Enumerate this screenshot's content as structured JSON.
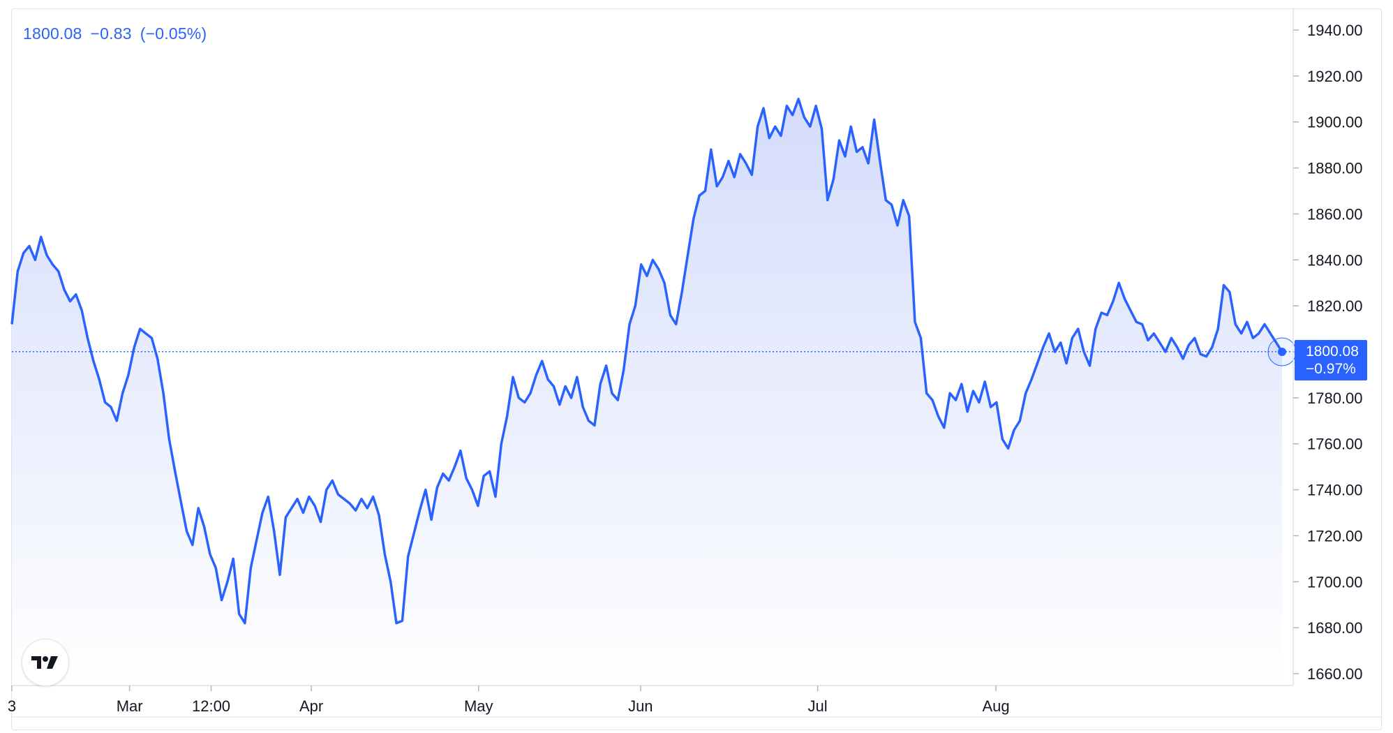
{
  "legend": {
    "last": "1800.08",
    "change": "−0.83",
    "change_pct": "(−0.05%)"
  },
  "badge": {
    "price": "1800.08",
    "change_pct": "−0.97%"
  },
  "colors": {
    "line": "#2962ff",
    "area_top": "#d4dcfb",
    "area_bottom": "#ffffff",
    "axis_text": "#131722",
    "border": "#e0e3eb"
  },
  "logo_icon": "tradingview-logo-icon",
  "chart_data": {
    "type": "area",
    "y_ticks": [
      "1940.00",
      "1920.00",
      "1900.00",
      "1880.00",
      "1860.00",
      "1840.00",
      "1820.00",
      "1800.00",
      "1780.00",
      "1760.00",
      "1740.00",
      "1720.00",
      "1700.00",
      "1680.00",
      "1660.00"
    ],
    "ylim": [
      1655,
      1950
    ],
    "x_tick_labels": [
      {
        "label": "3",
        "t": 0
      },
      {
        "label": "Mar",
        "t": 20.2
      },
      {
        "label": "12:00",
        "t": 34.2
      },
      {
        "label": "Apr",
        "t": 51.4
      },
      {
        "label": "May",
        "t": 80.1
      },
      {
        "label": "Jun",
        "t": 107.9
      },
      {
        "label": "Jul",
        "t": 138.3
      },
      {
        "label": "Aug",
        "t": 168.9
      }
    ],
    "last_value": 1800.08,
    "series": [
      {
        "points": [
          [
            0,
            1812
          ],
          [
            1,
            1835
          ],
          [
            2,
            1843
          ],
          [
            3,
            1846
          ],
          [
            4,
            1840
          ],
          [
            5,
            1850
          ],
          [
            6,
            1842
          ],
          [
            7,
            1838
          ],
          [
            8,
            1835
          ],
          [
            9,
            1827
          ],
          [
            10,
            1822
          ],
          [
            11,
            1825
          ],
          [
            12,
            1818
          ],
          [
            13,
            1806
          ],
          [
            14,
            1796
          ],
          [
            15,
            1788
          ],
          [
            16,
            1778
          ],
          [
            17,
            1776
          ],
          [
            18,
            1770
          ],
          [
            19,
            1782
          ],
          [
            20,
            1790
          ],
          [
            21,
            1802
          ],
          [
            22,
            1810
          ],
          [
            23,
            1808
          ],
          [
            24,
            1806
          ],
          [
            25,
            1797
          ],
          [
            26,
            1782
          ],
          [
            27,
            1762
          ],
          [
            28,
            1748
          ],
          [
            29,
            1735
          ],
          [
            30,
            1722
          ],
          [
            31,
            1716
          ],
          [
            32,
            1732
          ],
          [
            33,
            1724
          ],
          [
            34,
            1712
          ],
          [
            35,
            1706
          ],
          [
            36,
            1692
          ],
          [
            37,
            1700
          ],
          [
            38,
            1710
          ],
          [
            39,
            1686
          ],
          [
            40,
            1682
          ],
          [
            41,
            1706
          ],
          [
            42,
            1718
          ],
          [
            43,
            1730
          ],
          [
            44,
            1737
          ],
          [
            45,
            1722
          ],
          [
            46,
            1703
          ],
          [
            47,
            1728
          ],
          [
            48,
            1732
          ],
          [
            49,
            1736
          ],
          [
            50,
            1730
          ],
          [
            51,
            1737
          ],
          [
            52,
            1733
          ],
          [
            53,
            1726
          ],
          [
            54,
            1740
          ],
          [
            55,
            1744
          ],
          [
            56,
            1738
          ],
          [
            57,
            1736
          ],
          [
            58,
            1734
          ],
          [
            59,
            1731
          ],
          [
            60,
            1736
          ],
          [
            61,
            1732
          ],
          [
            62,
            1737
          ],
          [
            63,
            1729
          ],
          [
            64,
            1712
          ],
          [
            65,
            1700
          ],
          [
            66,
            1682
          ],
          [
            67,
            1683
          ],
          [
            68,
            1711
          ],
          [
            69,
            1721
          ],
          [
            70,
            1731
          ],
          [
            71,
            1740
          ],
          [
            72,
            1727
          ],
          [
            73,
            1741
          ],
          [
            74,
            1747
          ],
          [
            75,
            1744
          ],
          [
            76,
            1750
          ],
          [
            77,
            1757
          ],
          [
            78,
            1745
          ],
          [
            79,
            1740
          ],
          [
            80,
            1733
          ],
          [
            81,
            1746
          ],
          [
            82,
            1748
          ],
          [
            83,
            1737
          ],
          [
            84,
            1760
          ],
          [
            85,
            1772
          ],
          [
            86,
            1789
          ],
          [
            87,
            1780
          ],
          [
            88,
            1778
          ],
          [
            89,
            1782
          ],
          [
            90,
            1790
          ],
          [
            91,
            1796
          ],
          [
            92,
            1788
          ],
          [
            93,
            1785
          ],
          [
            94,
            1777
          ],
          [
            95,
            1785
          ],
          [
            96,
            1780
          ],
          [
            97,
            1789
          ],
          [
            98,
            1776
          ],
          [
            99,
            1770
          ],
          [
            100,
            1768
          ],
          [
            101,
            1786
          ],
          [
            102,
            1794
          ],
          [
            103,
            1782
          ],
          [
            104,
            1779
          ],
          [
            105,
            1792
          ],
          [
            106,
            1812
          ],
          [
            107,
            1820
          ],
          [
            108,
            1838
          ],
          [
            109,
            1833
          ],
          [
            110,
            1840
          ],
          [
            111,
            1836
          ],
          [
            112,
            1830
          ],
          [
            113,
            1816
          ],
          [
            114,
            1812
          ],
          [
            115,
            1826
          ],
          [
            116,
            1842
          ],
          [
            117,
            1858
          ],
          [
            118,
            1868
          ],
          [
            119,
            1870
          ],
          [
            120,
            1888
          ],
          [
            121,
            1872
          ],
          [
            122,
            1876
          ],
          [
            123,
            1883
          ],
          [
            124,
            1876
          ],
          [
            125,
            1886
          ],
          [
            126,
            1882
          ],
          [
            127,
            1877
          ],
          [
            128,
            1898
          ],
          [
            129,
            1906
          ],
          [
            130,
            1893
          ],
          [
            131,
            1898
          ],
          [
            132,
            1894
          ],
          [
            133,
            1907
          ],
          [
            134,
            1903
          ],
          [
            135,
            1910
          ],
          [
            136,
            1902
          ],
          [
            137,
            1898
          ],
          [
            138,
            1907
          ],
          [
            139,
            1897
          ],
          [
            140,
            1866
          ],
          [
            141,
            1875
          ],
          [
            142,
            1892
          ],
          [
            143,
            1885
          ],
          [
            144,
            1898
          ],
          [
            145,
            1887
          ],
          [
            146,
            1889
          ],
          [
            147,
            1882
          ],
          [
            148,
            1901
          ],
          [
            149,
            1883
          ],
          [
            150,
            1866
          ],
          [
            151,
            1864
          ],
          [
            152,
            1855
          ],
          [
            153,
            1866
          ],
          [
            154,
            1859
          ],
          [
            155,
            1813
          ],
          [
            156,
            1806
          ],
          [
            157,
            1782
          ],
          [
            158,
            1779
          ],
          [
            159,
            1772
          ],
          [
            160,
            1767
          ],
          [
            161,
            1782
          ],
          [
            162,
            1779
          ],
          [
            163,
            1786
          ],
          [
            164,
            1774
          ],
          [
            165,
            1783
          ],
          [
            166,
            1778
          ],
          [
            167,
            1787
          ],
          [
            168,
            1776
          ],
          [
            169,
            1778
          ],
          [
            170,
            1762
          ],
          [
            171,
            1758
          ],
          [
            172,
            1766
          ],
          [
            173,
            1770
          ],
          [
            174,
            1782
          ],
          [
            175,
            1788
          ],
          [
            176,
            1795
          ],
          [
            177,
            1802
          ],
          [
            178,
            1808
          ],
          [
            179,
            1800
          ],
          [
            180,
            1804
          ],
          [
            181,
            1795
          ],
          [
            182,
            1806
          ],
          [
            183,
            1810
          ],
          [
            184,
            1800
          ],
          [
            185,
            1794
          ],
          [
            186,
            1810
          ],
          [
            187,
            1817
          ],
          [
            188,
            1816
          ],
          [
            189,
            1822
          ],
          [
            190,
            1830
          ],
          [
            191,
            1823
          ],
          [
            192,
            1818
          ],
          [
            193,
            1813
          ],
          [
            194,
            1812
          ],
          [
            195,
            1805
          ],
          [
            196,
            1808
          ],
          [
            197,
            1804
          ],
          [
            198,
            1800
          ],
          [
            199,
            1806
          ],
          [
            200,
            1802
          ],
          [
            201,
            1797
          ],
          [
            202,
            1803
          ],
          [
            203,
            1806
          ],
          [
            204,
            1799
          ],
          [
            205,
            1798
          ],
          [
            206,
            1802
          ],
          [
            207,
            1810
          ],
          [
            208,
            1829
          ],
          [
            209,
            1826
          ],
          [
            210,
            1812
          ],
          [
            211,
            1808
          ],
          [
            212,
            1813
          ],
          [
            213,
            1806
          ],
          [
            214,
            1808
          ],
          [
            215,
            1812
          ],
          [
            216,
            1808
          ],
          [
            217,
            1804
          ],
          [
            218,
            1800
          ]
        ]
      }
    ]
  }
}
